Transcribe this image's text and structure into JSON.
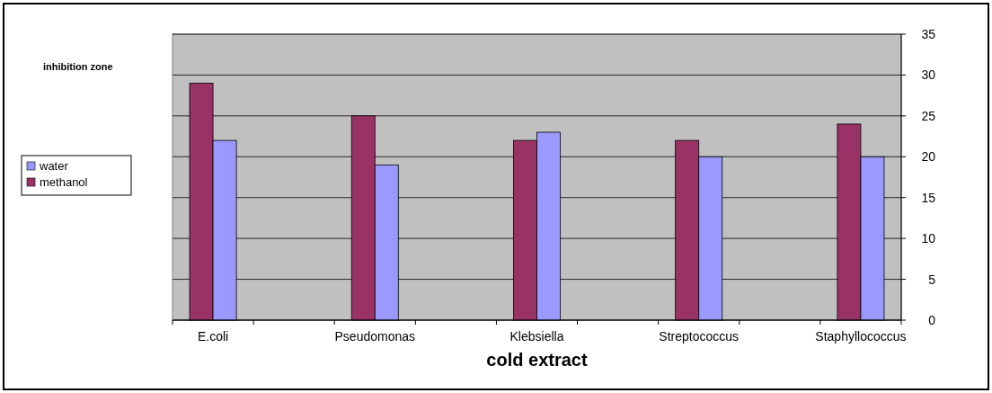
{
  "chart_data": {
    "type": "bar",
    "annotations": [
      "inhibition zone"
    ],
    "xlabel": "cold extract",
    "categories": [
      "E.coli",
      null,
      "Pseudomonas",
      null,
      "Klebsiella",
      null,
      "Streptococcus",
      null,
      "Staphyllococcus"
    ],
    "series": [
      {
        "name": "methanol",
        "color": "#993366",
        "values": [
          29,
          null,
          25,
          null,
          22,
          null,
          22,
          null,
          24
        ]
      },
      {
        "name": "water",
        "color": "#9999ff",
        "values": [
          22,
          null,
          19,
          null,
          23,
          null,
          20,
          null,
          20
        ]
      }
    ],
    "ylim": [
      0,
      35
    ],
    "yticks": [
      0,
      5,
      10,
      15,
      20,
      25,
      30,
      35
    ],
    "grid": "y",
    "legend": "left"
  }
}
